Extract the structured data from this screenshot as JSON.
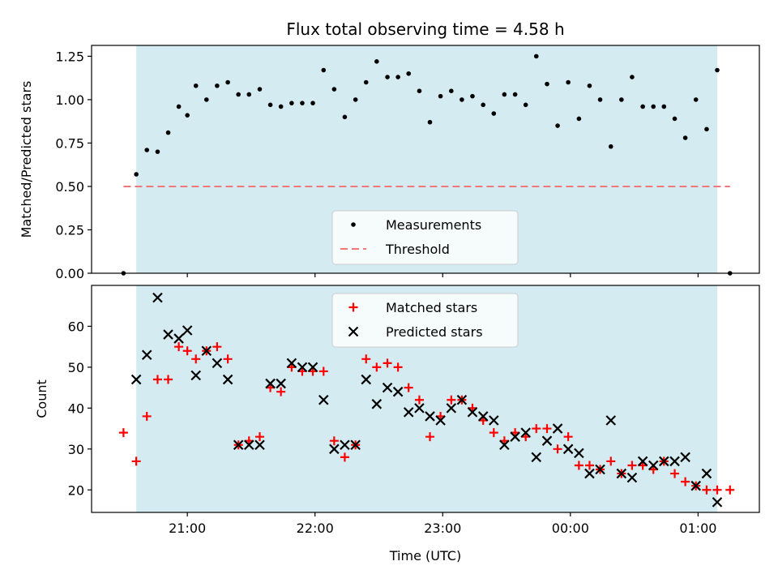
{
  "title": "Flux total observing time = 4.58 h",
  "colors": {
    "shade": "#d3ebf1",
    "threshold": "#f07878",
    "measurement": "#000000",
    "matched": "#ff0000",
    "predicted": "#000000"
  },
  "chart_data": [
    {
      "type": "scatter",
      "ylabel": "Matched/Predicted stars",
      "xlim": [
        20.25,
        1.48
      ],
      "ylim": [
        0,
        1.3125
      ],
      "yticks": [
        "0.00",
        "0.25",
        "0.50",
        "0.75",
        "1.00",
        "1.25"
      ],
      "shaded_span": [
        20.6,
        1.15
      ],
      "threshold": {
        "name": "Threshold",
        "value": 0.5,
        "x_range": [
          20.5,
          1.25
        ]
      },
      "legend": {
        "position": "lower-center",
        "entries": [
          "Measurements",
          "Threshold"
        ]
      },
      "series": [
        {
          "name": "Measurements",
          "x": [
            20.5,
            20.6,
            20.683,
            20.767,
            20.85,
            20.933,
            21.0,
            21.067,
            21.15,
            21.233,
            21.317,
            21.4,
            21.483,
            21.567,
            21.65,
            21.733,
            21.817,
            21.9,
            21.983,
            22.067,
            22.15,
            22.233,
            22.317,
            22.4,
            22.483,
            22.567,
            22.65,
            22.733,
            22.817,
            22.9,
            22.983,
            23.067,
            23.15,
            23.233,
            23.317,
            23.4,
            23.483,
            23.567,
            23.65,
            23.733,
            23.817,
            23.9,
            23.983,
            0.067,
            0.15,
            0.233,
            0.317,
            0.4,
            0.483,
            0.567,
            0.65,
            0.733,
            0.817,
            0.9,
            0.983,
            1.067,
            1.15,
            1.25
          ],
          "y": [
            0.0,
            0.57,
            0.71,
            0.7,
            0.81,
            0.96,
            0.91,
            1.08,
            1.0,
            1.08,
            1.1,
            1.03,
            1.03,
            1.06,
            0.97,
            0.96,
            0.98,
            0.98,
            0.98,
            1.17,
            1.06,
            0.9,
            1.0,
            1.1,
            1.22,
            1.13,
            1.13,
            1.15,
            1.05,
            0.87,
            1.02,
            1.05,
            1.0,
            1.02,
            0.97,
            0.92,
            1.03,
            1.03,
            0.97,
            1.25,
            1.09,
            0.85,
            1.1,
            0.89,
            1.08,
            1.0,
            0.73,
            1.0,
            1.13,
            0.96,
            0.96,
            0.96,
            0.89,
            0.78,
            1.0,
            0.83,
            1.17,
            0.0
          ]
        }
      ]
    },
    {
      "type": "scatter",
      "ylabel": "Count",
      "xlabel": "Time (UTC)",
      "xlim": [
        20.25,
        1.48
      ],
      "ylim": [
        14.5,
        70
      ],
      "yticks": [
        "20",
        "30",
        "40",
        "50",
        "60"
      ],
      "xticks": [
        "21:00",
        "22:00",
        "23:00",
        "00:00",
        "01:00"
      ],
      "shaded_span": [
        20.6,
        1.15
      ],
      "legend": {
        "position": "upper-center",
        "entries": [
          "Matched stars",
          "Predicted stars"
        ]
      },
      "series": [
        {
          "name": "Matched stars",
          "x": [
            20.5,
            20.6,
            20.683,
            20.767,
            20.85,
            20.933,
            21.0,
            21.067,
            21.15,
            21.233,
            21.317,
            21.4,
            21.483,
            21.567,
            21.65,
            21.733,
            21.817,
            21.9,
            21.983,
            22.067,
            22.15,
            22.233,
            22.317,
            22.4,
            22.483,
            22.567,
            22.65,
            22.733,
            22.817,
            22.9,
            22.983,
            23.067,
            23.15,
            23.233,
            23.317,
            23.4,
            23.483,
            23.567,
            23.65,
            23.733,
            23.817,
            23.9,
            23.983,
            0.067,
            0.15,
            0.233,
            0.317,
            0.4,
            0.483,
            0.567,
            0.65,
            0.733,
            0.817,
            0.9,
            0.983,
            1.067,
            1.15,
            1.25
          ],
          "y": [
            34,
            27,
            38,
            47,
            47,
            55,
            54,
            52,
            54,
            55,
            52,
            31,
            32,
            33,
            45,
            44,
            50,
            49,
            49,
            49,
            32,
            28,
            31,
            52,
            50,
            51,
            50,
            45,
            42,
            33,
            38,
            42,
            42,
            40,
            37,
            34,
            32,
            34,
            33,
            35,
            35,
            30,
            33,
            26,
            26,
            25,
            27,
            24,
            26,
            26,
            25,
            27,
            24,
            22,
            21,
            20,
            20,
            20
          ]
        },
        {
          "name": "Predicted stars",
          "x": [
            20.6,
            20.683,
            20.767,
            20.85,
            20.933,
            21.0,
            21.067,
            21.15,
            21.233,
            21.317,
            21.4,
            21.483,
            21.567,
            21.65,
            21.733,
            21.817,
            21.9,
            21.983,
            22.067,
            22.15,
            22.233,
            22.317,
            22.4,
            22.483,
            22.567,
            22.65,
            22.733,
            22.817,
            22.9,
            22.983,
            23.067,
            23.15,
            23.233,
            23.317,
            23.4,
            23.483,
            23.567,
            23.65,
            23.733,
            23.817,
            23.9,
            23.983,
            0.067,
            0.15,
            0.233,
            0.317,
            0.4,
            0.483,
            0.567,
            0.65,
            0.733,
            0.817,
            0.9,
            0.983,
            1.067,
            1.15
          ],
          "y": [
            47,
            53,
            67,
            58,
            57,
            59,
            48,
            54,
            51,
            47,
            31,
            31,
            31,
            46,
            46,
            51,
            50,
            50,
            42,
            30,
            31,
            31,
            47,
            41,
            45,
            44,
            39,
            40,
            38,
            37,
            40,
            42,
            39,
            38,
            37,
            31,
            33,
            34,
            28,
            32,
            35,
            30,
            29,
            24,
            25,
            37,
            24,
            23,
            27,
            26,
            27,
            27,
            28,
            21,
            24,
            17
          ]
        }
      ]
    }
  ]
}
